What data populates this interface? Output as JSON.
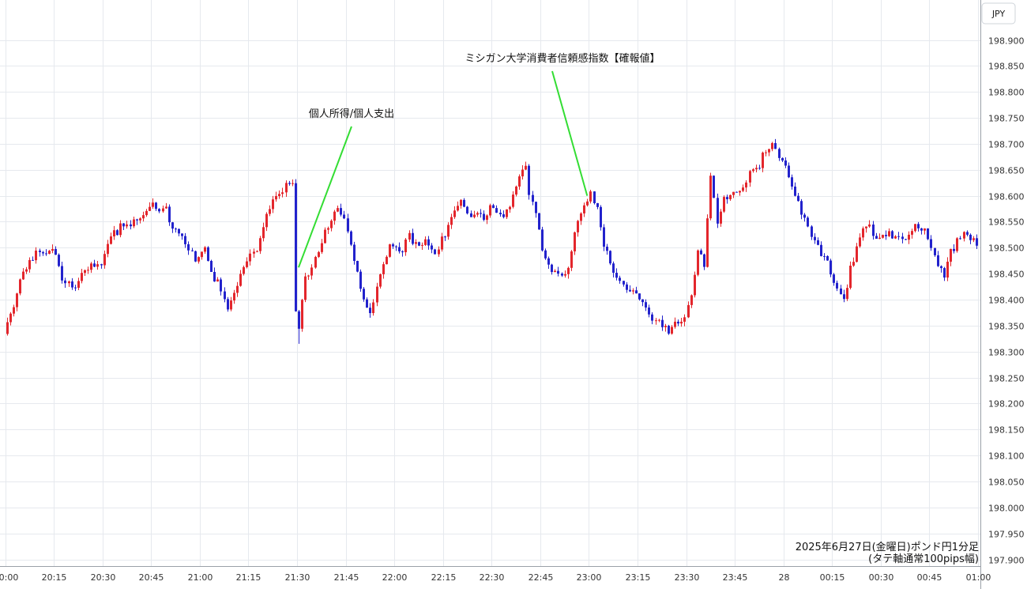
{
  "currency_label": "JPY",
  "caption": [
    "2025年6月27日(金曜日)ポンド円1分足",
    "(タテ軸通常100pips幅)"
  ],
  "colors": {
    "up": "#e3262c",
    "down": "#2222cc",
    "annotation_line": "#33dd33",
    "grid": "#e6e9ee"
  },
  "chart_data": {
    "type": "candlestick",
    "timeframe": "1m",
    "ylim": [
      197.9,
      198.95
    ],
    "y_ticks": [
      "197.900",
      "197.950",
      "198.000",
      "198.050",
      "198.100",
      "198.150",
      "198.200",
      "198.250",
      "198.300",
      "198.350",
      "198.400",
      "198.450",
      "198.500",
      "198.550",
      "198.600",
      "198.650",
      "198.700",
      "198.750",
      "198.800",
      "198.850",
      "198.900"
    ],
    "x_tick_labels": [
      "20:00",
      "20:15",
      "20:30",
      "20:45",
      "21:00",
      "21:15",
      "21:30",
      "21:45",
      "22:00",
      "22:15",
      "22:30",
      "22:45",
      "23:00",
      "23:15",
      "23:30",
      "23:45",
      "28",
      "00:15",
      "00:30",
      "00:45",
      "01:00"
    ],
    "x_start": "20:00",
    "annotations": [
      {
        "text": "個人所得/個人支出",
        "time": "21:30",
        "price": 198.462
      },
      {
        "text": "ミシガン大学消費者信頼感指数【確報値】",
        "time": "22:59",
        "price": 198.6
      }
    ],
    "path": [
      [
        "20:00",
        198.33
      ],
      [
        "20:02",
        198.37
      ],
      [
        "20:05",
        198.44
      ],
      [
        "20:08",
        198.47
      ],
      [
        "20:11",
        198.5
      ],
      [
        "20:13",
        198.49
      ],
      [
        "20:15",
        198.5
      ],
      [
        "20:18",
        198.44
      ],
      [
        "20:21",
        198.42
      ],
      [
        "20:23",
        198.43
      ],
      [
        "20:25",
        198.46
      ],
      [
        "20:30",
        198.47
      ],
      [
        "20:33",
        198.52
      ],
      [
        "20:36",
        198.54
      ],
      [
        "20:40",
        198.55
      ],
      [
        "20:43",
        198.57
      ],
      [
        "20:46",
        198.58
      ],
      [
        "20:50",
        198.57
      ],
      [
        "20:53",
        198.53
      ],
      [
        "20:56",
        198.51
      ],
      [
        "20:59",
        198.48
      ],
      [
        "21:02",
        198.5
      ],
      [
        "21:04",
        198.45
      ],
      [
        "21:07",
        198.42
      ],
      [
        "21:09",
        198.39
      ],
      [
        "21:12",
        198.43
      ],
      [
        "21:15",
        198.47
      ],
      [
        "21:18",
        198.5
      ],
      [
        "21:21",
        198.57
      ],
      [
        "21:24",
        198.6
      ],
      [
        "21:26",
        198.61
      ],
      [
        "21:28",
        198.63
      ],
      [
        "21:29",
        198.62
      ],
      [
        "21:30",
        198.37
      ],
      [
        "21:31",
        198.35
      ],
      [
        "21:33",
        198.44
      ],
      [
        "21:37",
        198.5
      ],
      [
        "21:40",
        198.54
      ],
      [
        "21:43",
        198.58
      ],
      [
        "21:45",
        198.55
      ],
      [
        "21:47",
        198.5
      ],
      [
        "21:49",
        198.45
      ],
      [
        "21:51",
        198.4
      ],
      [
        "21:53",
        198.38
      ],
      [
        "21:56",
        198.44
      ],
      [
        "21:59",
        198.5
      ],
      [
        "22:02",
        198.49
      ],
      [
        "22:05",
        198.52
      ],
      [
        "22:08",
        198.5
      ],
      [
        "22:10",
        198.51
      ],
      [
        "22:13",
        198.49
      ],
      [
        "22:16",
        198.53
      ],
      [
        "22:19",
        198.57
      ],
      [
        "22:21",
        198.6
      ],
      [
        "22:23",
        198.56
      ],
      [
        "22:26",
        198.57
      ],
      [
        "22:28",
        198.55
      ],
      [
        "22:30",
        198.59
      ],
      [
        "22:33",
        198.56
      ],
      [
        "22:36",
        198.58
      ],
      [
        "22:39",
        198.64
      ],
      [
        "22:41",
        198.66
      ],
      [
        "22:42",
        198.6
      ],
      [
        "22:44",
        198.56
      ],
      [
        "22:46",
        198.5
      ],
      [
        "22:48",
        198.46
      ],
      [
        "22:51",
        198.45
      ],
      [
        "22:54",
        198.46
      ],
      [
        "22:56",
        198.53
      ],
      [
        "22:59",
        198.58
      ],
      [
        "23:01",
        198.6
      ],
      [
        "23:03",
        198.57
      ],
      [
        "23:05",
        198.5
      ],
      [
        "23:07",
        198.47
      ],
      [
        "23:10",
        198.44
      ],
      [
        "23:13",
        198.42
      ],
      [
        "23:16",
        198.4
      ],
      [
        "23:19",
        198.37
      ],
      [
        "23:22",
        198.36
      ],
      [
        "23:25",
        198.34
      ],
      [
        "23:28",
        198.36
      ],
      [
        "23:30",
        198.37
      ],
      [
        "23:32",
        198.4
      ],
      [
        "23:34",
        198.5
      ],
      [
        "23:36",
        198.47
      ],
      [
        "23:38",
        198.63
      ],
      [
        "23:40",
        198.55
      ],
      [
        "23:42",
        198.6
      ],
      [
        "23:45",
        198.6
      ],
      [
        "23:48",
        198.62
      ],
      [
        "23:50",
        198.64
      ],
      [
        "23:53",
        198.66
      ],
      [
        "23:55",
        198.69
      ],
      [
        "23:57",
        198.7
      ],
      [
        "23:59",
        198.68
      ],
      [
        "00:01",
        198.65
      ],
      [
        "00:04",
        198.6
      ],
      [
        "00:07",
        198.55
      ],
      [
        "00:10",
        198.51
      ],
      [
        "00:13",
        198.48
      ],
      [
        "00:16",
        198.44
      ],
      [
        "00:19",
        198.4
      ],
      [
        "00:21",
        198.46
      ],
      [
        "00:24",
        198.52
      ],
      [
        "00:27",
        198.55
      ],
      [
        "00:29",
        198.51
      ],
      [
        "00:32",
        198.52
      ],
      [
        "00:35",
        198.53
      ],
      [
        "00:38",
        198.52
      ],
      [
        "00:41",
        198.55
      ],
      [
        "00:44",
        198.53
      ],
      [
        "00:47",
        198.49
      ],
      [
        "00:50",
        198.44
      ],
      [
        "00:52",
        198.49
      ],
      [
        "00:55",
        198.52
      ],
      [
        "00:57",
        198.53
      ],
      [
        "00:59",
        198.51
      ]
    ]
  }
}
